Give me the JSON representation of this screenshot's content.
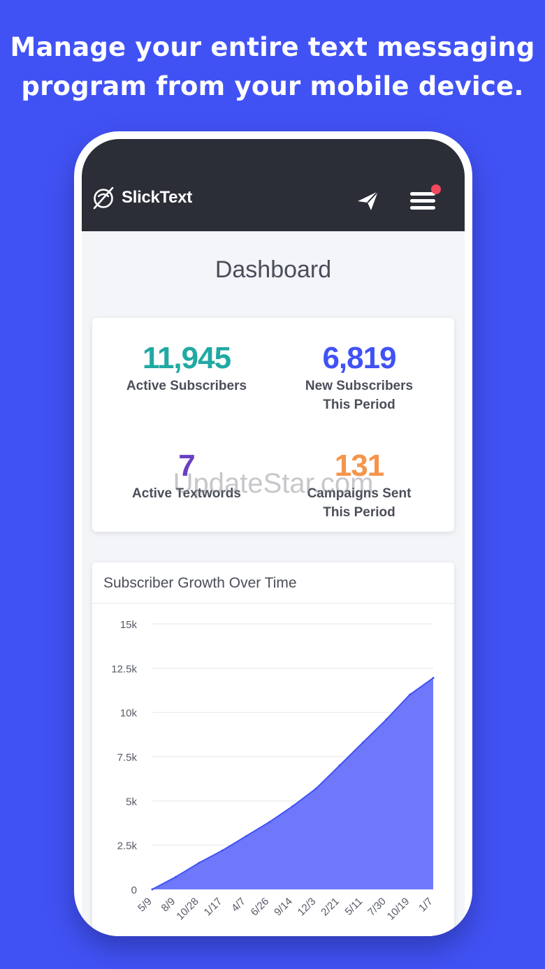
{
  "headline": {
    "line1": "Manage your entire text messaging",
    "line2": "program from your mobile device."
  },
  "app": {
    "brand": "SlickText",
    "logo_icon": "slicktext-logo-icon",
    "send_icon": "paper-plane-icon",
    "menu_icon": "hamburger-menu-icon",
    "notification_dot_color": "#f24a5c"
  },
  "dashboard": {
    "title": "Dashboard",
    "stats": [
      {
        "value": "11,945",
        "label_line1": "Active Subscribers",
        "label_line2": "",
        "color": "#21a9a3"
      },
      {
        "value": "6,819",
        "label_line1": "New Subscribers",
        "label_line2": "This Period",
        "color": "#4152f5"
      },
      {
        "value": "7",
        "label_line1": "Active Textwords",
        "label_line2": "",
        "color": "#6a3fc2"
      },
      {
        "value": "131",
        "label_line1": "Campaigns Sent",
        "label_line2": "This Period",
        "color": "#f5954a"
      }
    ],
    "watermark": "UpdateStar.com"
  },
  "chart_data": {
    "type": "area",
    "title": "Subscriber Growth Over Time",
    "xlabel": "",
    "ylabel": "",
    "ylim": [
      0,
      15000
    ],
    "ytick_labels": [
      "0",
      "2.5k",
      "5k",
      "7.5k",
      "10k",
      "12.5k",
      "15k"
    ],
    "yticks": [
      0,
      2500,
      5000,
      7500,
      10000,
      12500,
      15000
    ],
    "xtick_labels": [
      "5/9",
      "8/9",
      "10/28",
      "1/17",
      "4/7",
      "6/26",
      "9/14",
      "12/3",
      "2/21",
      "5/11",
      "7/30",
      "10/19",
      "1/7"
    ],
    "x": [
      "5/9",
      "8/9",
      "10/28",
      "1/17",
      "4/7",
      "6/26",
      "9/14",
      "12/3",
      "2/21",
      "5/11",
      "7/30",
      "10/19",
      "1/7"
    ],
    "series": [
      {
        "values": [
          0,
          700,
          1500,
          2200,
          3000,
          3800,
          4700,
          5700,
          7000,
          8300,
          9600,
          11000,
          11945
        ]
      }
    ],
    "grid": true,
    "fill_color": "#6f78fb",
    "line_color": "#4152f5"
  }
}
